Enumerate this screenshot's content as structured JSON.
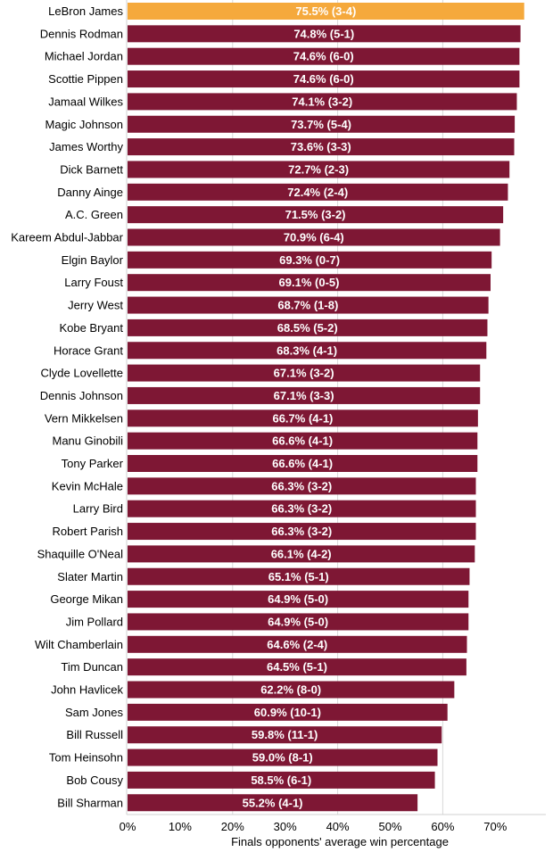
{
  "chart_data": {
    "type": "bar",
    "orientation": "horizontal",
    "xlabel": "Finals opponents' average win percentage",
    "xlim": [
      0,
      78
    ],
    "x_ticks": [
      "0%",
      "10%",
      "20%",
      "30%",
      "40%",
      "50%",
      "60%",
      "70%"
    ],
    "colors": {
      "highlight": "#F5A93C",
      "bar": "#7E1734",
      "grid": "#D9D9D9"
    },
    "bars": [
      {
        "name": "LeBron James",
        "value": 75.5,
        "label": "75.5% (3-4)",
        "highlight": true
      },
      {
        "name": "Dennis Rodman",
        "value": 74.8,
        "label": "74.8% (5-1)"
      },
      {
        "name": "Michael Jordan",
        "value": 74.6,
        "label": "74.6% (6-0)"
      },
      {
        "name": "Scottie Pippen",
        "value": 74.6,
        "label": "74.6% (6-0)"
      },
      {
        "name": "Jamaal Wilkes",
        "value": 74.1,
        "label": "74.1% (3-2)"
      },
      {
        "name": "Magic Johnson",
        "value": 73.7,
        "label": "73.7% (5-4)"
      },
      {
        "name": "James Worthy",
        "value": 73.6,
        "label": "73.6% (3-3)"
      },
      {
        "name": "Dick Barnett",
        "value": 72.7,
        "label": "72.7% (2-3)"
      },
      {
        "name": "Danny Ainge",
        "value": 72.4,
        "label": "72.4% (2-4)"
      },
      {
        "name": "A.C. Green",
        "value": 71.5,
        "label": "71.5% (3-2)"
      },
      {
        "name": "Kareem Abdul-Jabbar",
        "value": 70.9,
        "label": "70.9% (6-4)"
      },
      {
        "name": "Elgin Baylor",
        "value": 69.3,
        "label": "69.3% (0-7)"
      },
      {
        "name": "Larry Foust",
        "value": 69.1,
        "label": "69.1% (0-5)"
      },
      {
        "name": "Jerry West",
        "value": 68.7,
        "label": "68.7% (1-8)"
      },
      {
        "name": "Kobe Bryant",
        "value": 68.5,
        "label": "68.5% (5-2)"
      },
      {
        "name": "Horace Grant",
        "value": 68.3,
        "label": "68.3% (4-1)"
      },
      {
        "name": "Clyde Lovellette",
        "value": 67.1,
        "label": "67.1% (3-2)"
      },
      {
        "name": "Dennis Johnson",
        "value": 67.1,
        "label": "67.1% (3-3)"
      },
      {
        "name": "Vern Mikkelsen",
        "value": 66.7,
        "label": "66.7% (4-1)"
      },
      {
        "name": "Manu Ginobili",
        "value": 66.6,
        "label": "66.6% (4-1)"
      },
      {
        "name": "Tony Parker",
        "value": 66.6,
        "label": "66.6% (4-1)"
      },
      {
        "name": "Kevin McHale",
        "value": 66.3,
        "label": "66.3% (3-2)"
      },
      {
        "name": "Larry Bird",
        "value": 66.3,
        "label": "66.3% (3-2)"
      },
      {
        "name": "Robert Parish",
        "value": 66.3,
        "label": "66.3% (3-2)"
      },
      {
        "name": "Shaquille O'Neal",
        "value": 66.1,
        "label": "66.1% (4-2)"
      },
      {
        "name": "Slater Martin",
        "value": 65.1,
        "label": "65.1% (5-1)"
      },
      {
        "name": "George Mikan",
        "value": 64.9,
        "label": "64.9% (5-0)"
      },
      {
        "name": "Jim Pollard",
        "value": 64.9,
        "label": "64.9% (5-0)"
      },
      {
        "name": "Wilt Chamberlain",
        "value": 64.6,
        "label": "64.6% (2-4)"
      },
      {
        "name": "Tim Duncan",
        "value": 64.5,
        "label": "64.5% (5-1)"
      },
      {
        "name": "John Havlicek",
        "value": 62.2,
        "label": "62.2% (8-0)"
      },
      {
        "name": "Sam Jones",
        "value": 60.9,
        "label": "60.9% (10-1)"
      },
      {
        "name": "Bill Russell",
        "value": 59.8,
        "label": "59.8% (11-1)"
      },
      {
        "name": "Tom Heinsohn",
        "value": 59.0,
        "label": "59.0% (8-1)"
      },
      {
        "name": "Bob Cousy",
        "value": 58.5,
        "label": "58.5% (6-1)"
      },
      {
        "name": "Bill Sharman",
        "value": 55.2,
        "label": "55.2% (4-1)"
      }
    ]
  }
}
